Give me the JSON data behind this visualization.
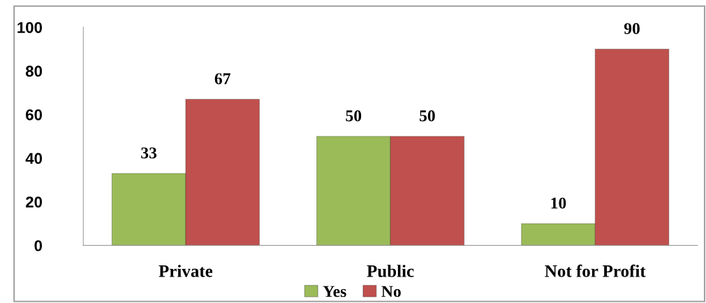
{
  "chart_data": {
    "type": "bar",
    "categories": [
      "Private",
      "Public",
      "Not for Profit"
    ],
    "series": [
      {
        "name": "Yes",
        "color": "#9bbb59",
        "values": [
          33,
          50,
          10
        ]
      },
      {
        "name": "No",
        "color": "#c0504d",
        "values": [
          67,
          50,
          90
        ]
      }
    ],
    "ylim": [
      0,
      100
    ],
    "yticks": [
      0,
      20,
      40,
      60,
      80,
      100
    ],
    "data_labels": true,
    "grid": false,
    "legend": "bottom"
  }
}
